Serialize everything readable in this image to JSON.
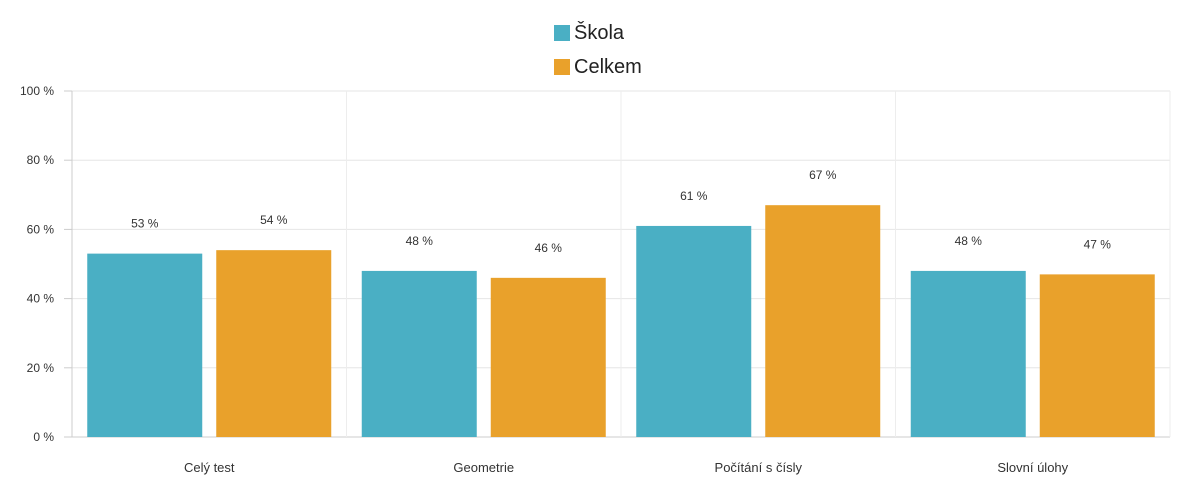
{
  "chart_data": {
    "type": "bar",
    "categories": [
      "Celý test",
      "Geometrie",
      "Počítání s čísly",
      "Slovní úlohy"
    ],
    "series": [
      {
        "name": "Škola",
        "values": [
          53,
          48,
          61,
          48
        ],
        "labels": [
          "53 %",
          "48 %",
          "61 %",
          "48 %"
        ],
        "color": "#4aafc4"
      },
      {
        "name": "Celkem",
        "values": [
          54,
          46,
          67,
          47
        ],
        "labels": [
          "54 %",
          "46 %",
          "67 %",
          "47 %"
        ],
        "color": "#e9a12b"
      }
    ],
    "ylim": [
      0,
      100
    ],
    "yticks": [
      0,
      20,
      40,
      60,
      80,
      100
    ],
    "ytick_labels": [
      "0 %",
      "20 %",
      "40 %",
      "60 %",
      "80 %",
      "100 %"
    ],
    "grid": true,
    "legend": "top-center"
  }
}
